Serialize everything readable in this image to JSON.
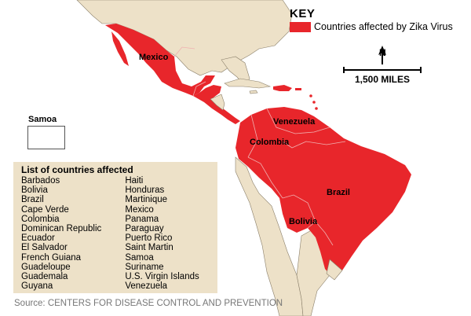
{
  "key": {
    "title": "KEY",
    "label": "Countries affected by Zika Virus",
    "affected_color": "#e8262b"
  },
  "colors": {
    "land": "#ede1c8",
    "sea": "#ffffff",
    "border": "#8a7f6a",
    "affected": "#e8262b"
  },
  "scale": {
    "north": "N",
    "label": "1,500 MILES"
  },
  "inset": {
    "label": "Samoa"
  },
  "map_labels": {
    "mexico": "Mexico",
    "venezuela": "Venezuela",
    "colombia": "Colombia",
    "brazil": "Brazil",
    "bolivia": "Bolivia"
  },
  "countries_list": {
    "title": "List of countries affected",
    "column1": [
      "Barbados",
      "Bolivia",
      "Brazil",
      "Cape Verde",
      "Colombia",
      "Dominican Republic",
      "Ecuador",
      "El Salvador",
      "French Guiana",
      "Guadeloupe",
      "Guademala",
      "Guyana"
    ],
    "column2": [
      "Haiti",
      "Honduras",
      "Martinique",
      "Mexico",
      "Panama",
      "Paraguay",
      "Puerto Rico",
      "Saint Martin",
      "Samoa",
      "Suriname",
      "U.S. Virgin Islands",
      "Venezuela"
    ]
  },
  "source": "Source: CENTERS FOR DISEASE CONTROL AND PREVENTION"
}
